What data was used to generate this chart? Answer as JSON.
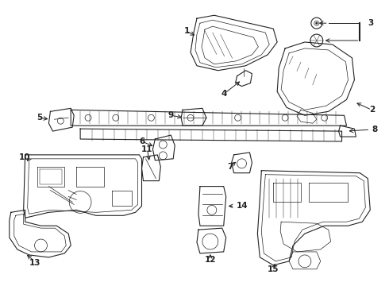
{
  "background_color": "#ffffff",
  "line_color": "#222222",
  "label_color": "#000000",
  "fig_width": 4.9,
  "fig_height": 3.6,
  "dpi": 100
}
